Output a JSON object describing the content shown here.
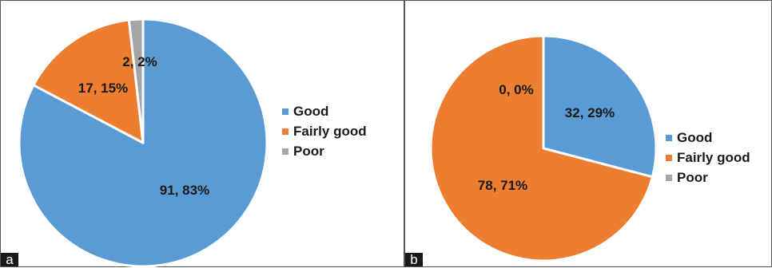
{
  "chart_data": [
    {
      "type": "pie",
      "panel_label": "a",
      "categories": [
        "Good",
        "Fairly good",
        "Poor"
      ],
      "values": [
        91,
        17,
        2
      ],
      "percents": [
        83,
        15,
        2
      ],
      "data_labels": [
        "91, 83%",
        "17, 15%",
        "2, 2%"
      ],
      "colors": [
        "#5b9bd5",
        "#ed7d31",
        "#a5a5a5"
      ],
      "legend_position": "right"
    },
    {
      "type": "pie",
      "panel_label": "b",
      "categories": [
        "Good",
        "Fairly good",
        "Poor"
      ],
      "values": [
        32,
        78,
        0
      ],
      "percents": [
        29,
        71,
        0
      ],
      "data_labels": [
        "32, 29%",
        "78, 71%",
        "0, 0%"
      ],
      "colors": [
        "#5b9bd5",
        "#ed7d31",
        "#a5a5a5"
      ],
      "legend_position": "right"
    }
  ]
}
